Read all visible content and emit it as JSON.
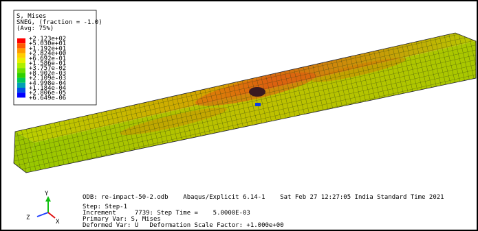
{
  "legend": {
    "title": [
      "S, Mises",
      "SNEG, (fraction = -1.0)",
      "(Avg: 75%)"
    ],
    "labels": [
      "+2.123e+02",
      "+5.030e+01",
      "+1.192e+01",
      "+2.824e+00",
      "+6.692e-01",
      "+1.586e-01",
      "+3.757e-02",
      "+8.902e-03",
      "+2.109e-03",
      "+4.998e-04",
      "+1.184e-04",
      "+2.806e-05",
      "+6.649e-06"
    ],
    "colors": [
      "#ff0000",
      "#ff5a00",
      "#ff9a00",
      "#ffce00",
      "#e8f000",
      "#aef000",
      "#6ee000",
      "#2ed000",
      "#00c85a",
      "#00a0b4",
      "#0050e6",
      "#0000ff"
    ]
  },
  "info": [
    "ODB: re-impact-50-2.odb    Abaqus/Explicit 6.14-1    Sat Feb 27 12:27:05 India Standard Time 2021",
    "Step: Step-1",
    "Increment     7739: Step Time =    5.0000E-03",
    "Primary Var: S, Mises",
    "Deformed Var: U   Deformation Scale Factor: +1.000e+00"
  ],
  "triad": {
    "y": "Y",
    "z": "Z",
    "x": "X"
  }
}
